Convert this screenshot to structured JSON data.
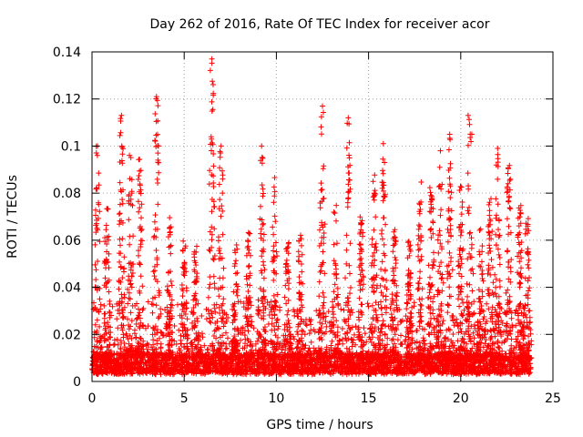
{
  "chart_data": {
    "type": "scatter",
    "title": "Day 262 of 2016, Rate Of TEC Index for receiver acor",
    "xlabel": "GPS time / hours",
    "ylabel": "ROTI / TECUs",
    "xlim": [
      0,
      25
    ],
    "ylim": [
      0,
      0.14
    ],
    "xticks": [
      0,
      5,
      10,
      15,
      20,
      25
    ],
    "xtick_labels": [
      "0",
      "5",
      "10",
      "15",
      "20",
      "25"
    ],
    "yticks": [
      0,
      0.02,
      0.04,
      0.06,
      0.08,
      0.1,
      0.12,
      0.14
    ],
    "ytick_labels": [
      "0",
      "0.02",
      "0.04",
      "0.06",
      "0.08",
      "0.1",
      "0.12",
      "0.14"
    ],
    "grid": true,
    "marker": "+",
    "series": [
      {
        "name": "ROTI",
        "color": "#ff0000",
        "x_range": [
          0,
          23.8
        ],
        "baseline": [
          0.003,
          0.012
        ],
        "notable_points": [
          {
            "x": 6.5,
            "y": 0.137
          },
          {
            "x": 3.5,
            "y": 0.121
          },
          {
            "x": 12.5,
            "y": 0.117
          },
          {
            "x": 20.4,
            "y": 0.113
          },
          {
            "x": 1.6,
            "y": 0.113
          },
          {
            "x": 13.9,
            "y": 0.112
          },
          {
            "x": 19.4,
            "y": 0.105
          },
          {
            "x": 20.6,
            "y": 0.105
          },
          {
            "x": 0.3,
            "y": 0.1
          },
          {
            "x": 3.6,
            "y": 0.1
          },
          {
            "x": 9.2,
            "y": 0.1
          },
          {
            "x": 15.8,
            "y": 0.101
          },
          {
            "x": 22,
            "y": 0.099
          },
          {
            "x": 7,
            "y": 0.1
          },
          {
            "x": 18.9,
            "y": 0.098
          }
        ],
        "clusters": [
          {
            "x": 0.3,
            "peak": 0.1
          },
          {
            "x": 0.8,
            "peak": 0.075
          },
          {
            "x": 1.6,
            "peak": 0.113
          },
          {
            "x": 2.1,
            "peak": 0.097
          },
          {
            "x": 2.6,
            "peak": 0.095
          },
          {
            "x": 3.5,
            "peak": 0.121
          },
          {
            "x": 4.2,
            "peak": 0.07
          },
          {
            "x": 5,
            "peak": 0.06
          },
          {
            "x": 5.6,
            "peak": 0.058
          },
          {
            "x": 6.5,
            "peak": 0.137
          },
          {
            "x": 7,
            "peak": 0.1
          },
          {
            "x": 7.8,
            "peak": 0.06
          },
          {
            "x": 8.5,
            "peak": 0.065
          },
          {
            "x": 9.2,
            "peak": 0.1
          },
          {
            "x": 9.9,
            "peak": 0.087
          },
          {
            "x": 10.6,
            "peak": 0.06
          },
          {
            "x": 11.3,
            "peak": 0.068
          },
          {
            "x": 12.5,
            "peak": 0.117
          },
          {
            "x": 13.2,
            "peak": 0.075
          },
          {
            "x": 13.9,
            "peak": 0.112
          },
          {
            "x": 14.6,
            "peak": 0.07
          },
          {
            "x": 15.3,
            "peak": 0.088
          },
          {
            "x": 15.8,
            "peak": 0.101
          },
          {
            "x": 16.4,
            "peak": 0.065
          },
          {
            "x": 17.2,
            "peak": 0.06
          },
          {
            "x": 17.8,
            "peak": 0.085
          },
          {
            "x": 18.4,
            "peak": 0.085
          },
          {
            "x": 18.9,
            "peak": 0.098
          },
          {
            "x": 19.4,
            "peak": 0.105
          },
          {
            "x": 20,
            "peak": 0.085
          },
          {
            "x": 20.5,
            "peak": 0.113
          },
          {
            "x": 21.1,
            "peak": 0.065
          },
          {
            "x": 21.6,
            "peak": 0.085
          },
          {
            "x": 22,
            "peak": 0.099
          },
          {
            "x": 22.6,
            "peak": 0.095
          },
          {
            "x": 23.2,
            "peak": 0.075
          },
          {
            "x": 23.6,
            "peak": 0.07
          }
        ]
      }
    ]
  }
}
